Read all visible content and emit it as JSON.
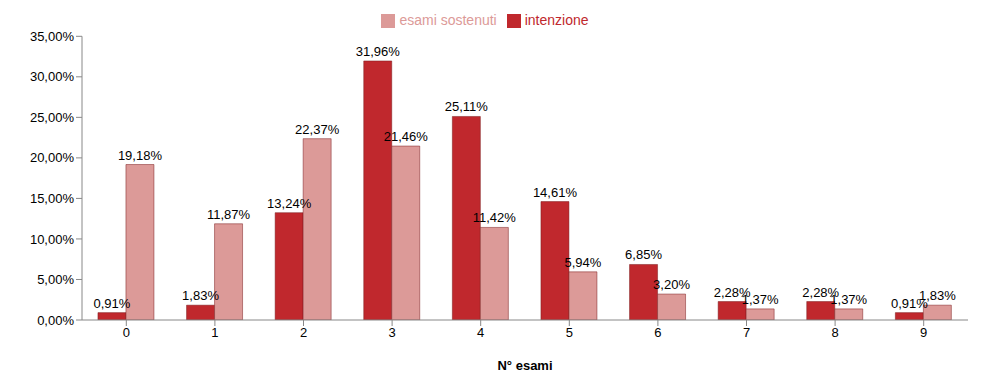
{
  "chart_data": {
    "type": "bar",
    "x_label": "N° esami",
    "categories": [
      "0",
      "1",
      "2",
      "3",
      "4",
      "5",
      "6",
      "7",
      "8",
      "9"
    ],
    "series": [
      {
        "name": "intenzione",
        "color": "#c0282d",
        "values": [
          0.91,
          1.83,
          13.24,
          31.96,
          25.11,
          14.61,
          6.85,
          2.28,
          2.28,
          0.91
        ],
        "value_labels": [
          "0,91%",
          "1,83%",
          "13,24%",
          "31,96%",
          "25,11%",
          "14,61%",
          "6,85%",
          "2,28%",
          "2,28%",
          "0,91%"
        ]
      },
      {
        "name": "esami sostenuti",
        "color": "#dc9a98",
        "values": [
          19.18,
          11.87,
          22.37,
          21.46,
          11.42,
          5.94,
          3.2,
          1.37,
          1.37,
          1.83
        ],
        "value_labels": [
          "19,18%",
          "11,87%",
          "22,37%",
          "21,46%",
          "11,42%",
          "5,94%",
          "3,20%",
          "1,37%",
          "1,37%",
          "1,83%"
        ]
      }
    ],
    "ylim": [
      0,
      35
    ],
    "yticks": [
      {
        "value": 0,
        "label": "0,00%"
      },
      {
        "value": 5,
        "label": "5,00%"
      },
      {
        "value": 10,
        "label": "10,00%"
      },
      {
        "value": 15,
        "label": "15,00%"
      },
      {
        "value": 20,
        "label": "20,00%"
      },
      {
        "value": 25,
        "label": "25,00%"
      },
      {
        "value": 30,
        "label": "30,00%"
      },
      {
        "value": 35,
        "label": "35,00%"
      }
    ],
    "grid": false,
    "legend": "top",
    "data_labels": true
  }
}
